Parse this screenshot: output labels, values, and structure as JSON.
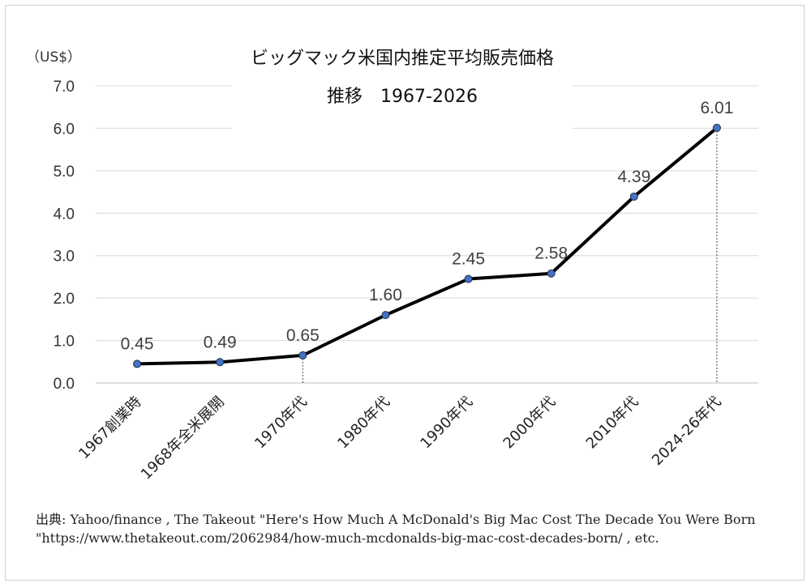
{
  "chart_data": {
    "type": "line",
    "title_line1": "ビッグマック米国内推定平均販売価格",
    "title_line2": "推移　1967-2026",
    "unit_label": "（US$）",
    "categories": [
      "1967創業時",
      "1968年全米展開",
      "1970年代",
      "1980年代",
      "1990年代",
      "2000年代",
      "2010年代",
      "2024-26年代"
    ],
    "values": [
      0.45,
      0.49,
      0.65,
      1.6,
      2.45,
      2.58,
      4.39,
      6.01
    ],
    "data_labels": [
      "0.45",
      "0.49",
      "0.65",
      "1.60",
      "2.45",
      "2.58",
      "4.39",
      "6.01"
    ],
    "ylim": [
      0,
      7
    ],
    "yticks": [
      "0.0",
      "1.0",
      "2.0",
      "3.0",
      "4.0",
      "5.0",
      "6.0",
      "7.0"
    ],
    "grid": true,
    "line_color": "#000000",
    "marker_color": "#4472c4",
    "reference_lines_at": [
      "1970年代",
      "2024-26年代"
    ]
  },
  "source_text": "出典: Yahoo/finance , The Takeout \"Here's How Much A McDonald's Big Mac Cost The Decade You Were Born \"https://www.thetakeout.com/2062984/how-much-mcdonalds-big-mac-cost-decades-born/ , etc."
}
